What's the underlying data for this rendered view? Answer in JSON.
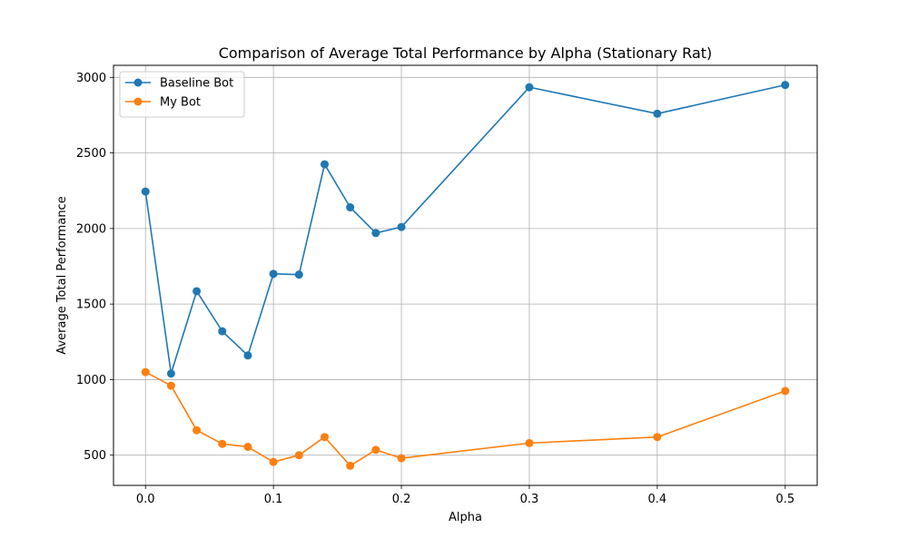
{
  "chart_data": {
    "type": "line",
    "title": "Comparison of Average Total Performance by Alpha (Stationary Rat)",
    "xlabel": "Alpha",
    "ylabel": "Average Total Performance",
    "xlim": [
      -0.025,
      0.525
    ],
    "ylim": [
      300,
      3080
    ],
    "xticks": [
      "0.0",
      "0.1",
      "0.2",
      "0.3",
      "0.4",
      "0.5"
    ],
    "yticks": [
      "500",
      "1000",
      "1500",
      "2000",
      "2500",
      "3000"
    ],
    "grid": true,
    "legend_position": "top-left",
    "x": [
      0.0,
      0.02,
      0.04,
      0.06,
      0.08,
      0.1,
      0.12,
      0.14,
      0.16,
      0.18,
      0.2,
      0.3,
      0.4,
      0.5
    ],
    "series": [
      {
        "name": "Baseline Bot",
        "color": "#1f77b4",
        "values": [
          2245,
          1040,
          1585,
          1320,
          1160,
          1700,
          1695,
          2425,
          2140,
          1970,
          2010,
          2935,
          2760,
          2950
        ]
      },
      {
        "name": "My Bot",
        "color": "#ff7f0e",
        "values": [
          1050,
          960,
          665,
          575,
          555,
          455,
          500,
          620,
          430,
          535,
          480,
          580,
          620,
          925
        ]
      }
    ]
  }
}
